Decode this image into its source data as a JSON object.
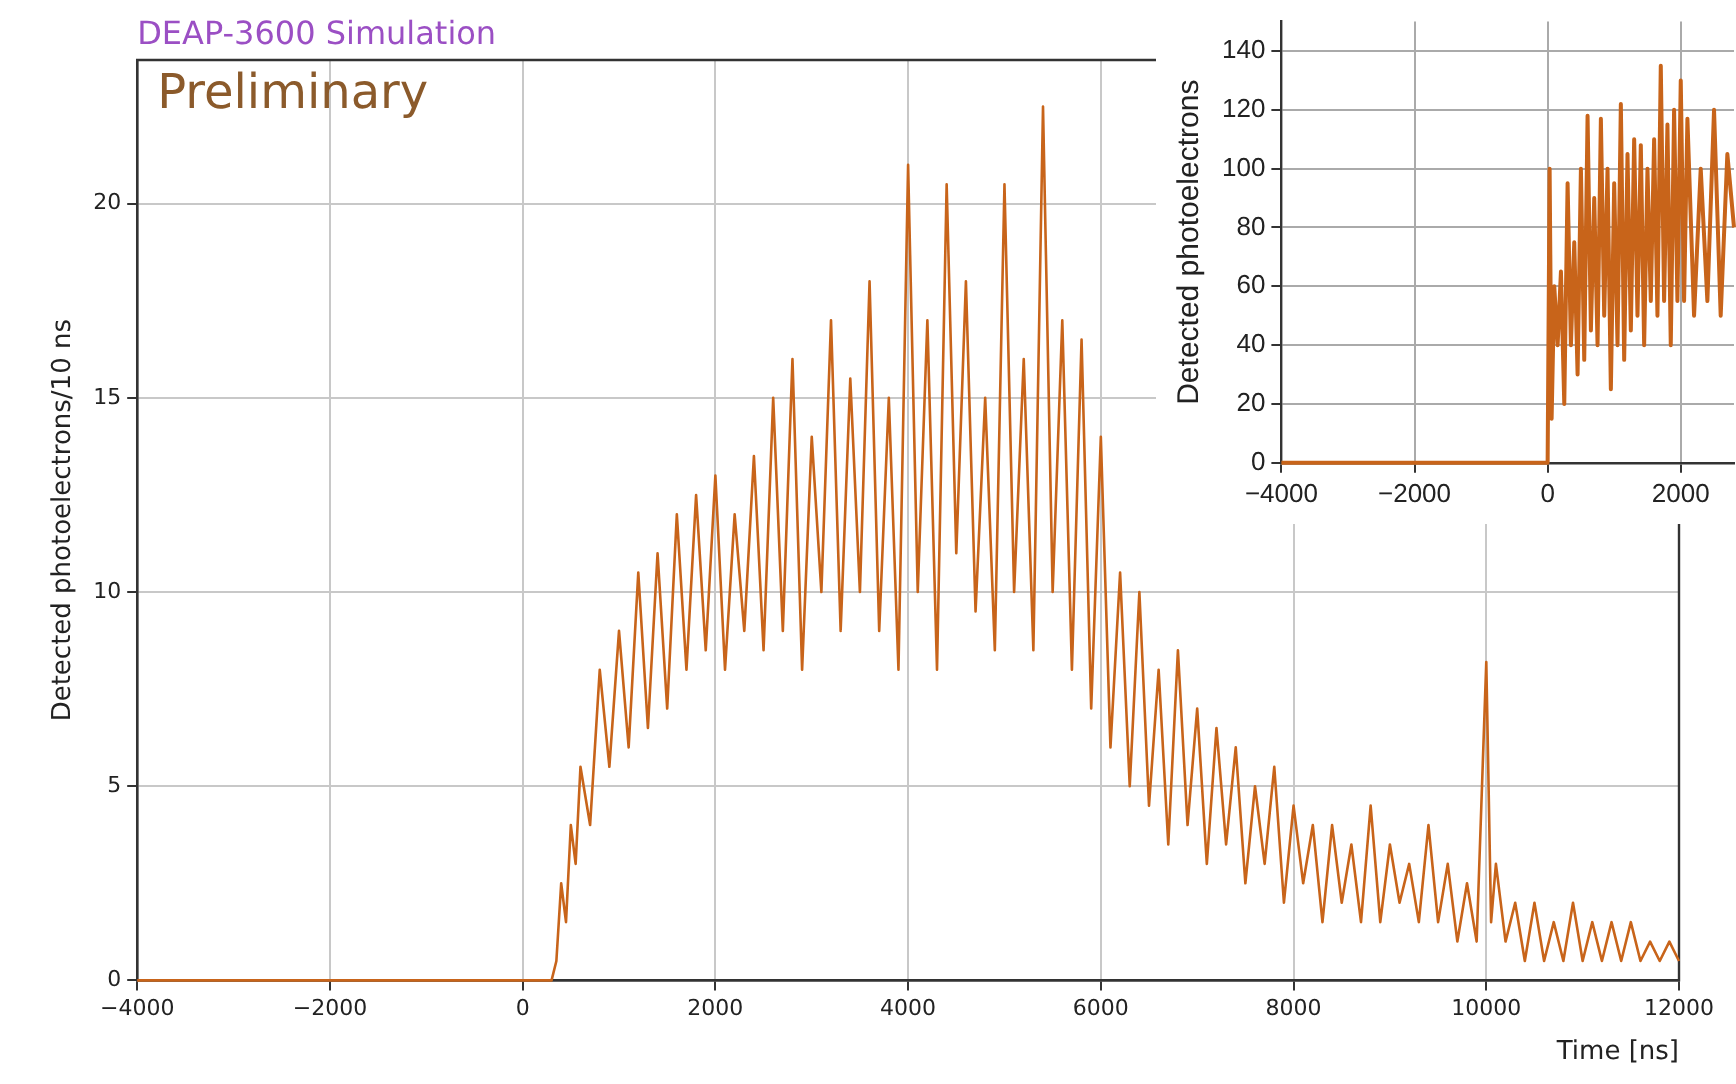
{
  "chart_data": [
    {
      "type": "line",
      "title": "DEAP-3600 Simulation",
      "annotations": [
        "Preliminary"
      ],
      "xlabel": "Time [ns]",
      "ylabel": "Detected photoelectrons/10 ns",
      "xlim": [
        -4000,
        12000
      ],
      "ylim": [
        0,
        23.7
      ],
      "xticks": [
        -4000,
        -2000,
        0,
        2000,
        4000,
        6000,
        8000,
        10000,
        12000
      ],
      "yticks": [
        0,
        5,
        10,
        15,
        20
      ],
      "grid": true,
      "legend": false,
      "series": [
        {
          "color": "#c8641a",
          "x": [
            -4000,
            300,
            350,
            400,
            450,
            500,
            550,
            600,
            700,
            800,
            900,
            1000,
            1100,
            1200,
            1300,
            1400,
            1500,
            1600,
            1700,
            1800,
            1900,
            2000,
            2100,
            2200,
            2300,
            2400,
            2500,
            2600,
            2700,
            2800,
            2900,
            3000,
            3100,
            3200,
            3300,
            3400,
            3500,
            3600,
            3700,
            3800,
            3900,
            4000,
            4100,
            4200,
            4300,
            4400,
            4500,
            4600,
            4700,
            4800,
            4900,
            5000,
            5100,
            5200,
            5300,
            5400,
            5500,
            5600,
            5700,
            5800,
            5900,
            6000,
            6100,
            6200,
            6300,
            6400,
            6500,
            6600,
            6700,
            6800,
            6900,
            7000,
            7100,
            7200,
            7300,
            7400,
            7500,
            7600,
            7700,
            7800,
            7900,
            8000,
            8100,
            8200,
            8300,
            8400,
            8500,
            8600,
            8700,
            8800,
            8900,
            9000,
            9100,
            9200,
            9300,
            9400,
            9500,
            9600,
            9700,
            9800,
            9900,
            10000,
            10050,
            10100,
            10200,
            10300,
            10400,
            10500,
            10600,
            10700,
            10800,
            10900,
            11000,
            11100,
            11200,
            11300,
            11400,
            11500,
            11600,
            11700,
            11800,
            11900,
            12000
          ],
          "values": [
            0,
            0,
            0.5,
            2.5,
            1.5,
            4,
            3,
            5.5,
            4,
            8,
            5.5,
            9,
            6,
            10.5,
            6.5,
            11,
            7,
            12,
            8,
            12.5,
            8.5,
            13,
            8,
            12,
            9,
            13.5,
            8.5,
            15,
            9,
            16,
            8,
            14,
            10,
            17,
            9,
            15.5,
            10,
            18,
            9,
            15,
            8,
            21,
            10,
            17,
            8,
            20.5,
            11,
            18,
            9.5,
            15,
            8.5,
            20.5,
            10,
            16,
            8.5,
            22.5,
            10,
            17,
            8,
            16.5,
            7,
            14,
            6,
            10.5,
            5,
            10,
            4.5,
            8,
            3.5,
            8.5,
            4,
            7,
            3,
            6.5,
            3.5,
            6,
            2.5,
            5,
            3,
            5.5,
            2,
            4.5,
            2.5,
            4,
            1.5,
            4,
            2,
            3.5,
            1.5,
            4.5,
            1.5,
            3.5,
            2,
            3,
            1.5,
            4,
            1.5,
            3,
            1,
            2.5,
            1,
            8.2,
            1.5,
            3,
            1,
            2,
            0.5,
            2,
            0.5,
            1.5,
            0.5,
            2,
            0.5,
            1.5,
            0.5,
            1.5,
            0.5,
            1.5,
            0.5,
            1,
            0.5,
            1,
            0.5
          ]
        }
      ]
    },
    {
      "type": "line",
      "ylabel": "Detected photoelectrons",
      "xlim": [
        -4000,
        2800
      ],
      "ylim": [
        0,
        150
      ],
      "xticks": [
        -4000,
        -2000,
        0,
        2000
      ],
      "yticks": [
        0,
        20,
        40,
        60,
        80,
        100,
        120,
        140
      ],
      "grid": true,
      "legend": false,
      "series": [
        {
          "color": "#c8641a",
          "x": [
            -4000,
            0,
            30,
            60,
            100,
            150,
            200,
            250,
            300,
            350,
            400,
            450,
            500,
            550,
            600,
            650,
            700,
            750,
            800,
            850,
            900,
            950,
            1000,
            1050,
            1100,
            1150,
            1200,
            1250,
            1300,
            1350,
            1400,
            1450,
            1500,
            1550,
            1600,
            1650,
            1700,
            1750,
            1800,
            1850,
            1900,
            1950,
            2000,
            2050,
            2100,
            2200,
            2300,
            2400,
            2500,
            2600,
            2700,
            2800
          ],
          "values": [
            0,
            0,
            100,
            15,
            60,
            40,
            65,
            20,
            95,
            40,
            75,
            30,
            100,
            35,
            118,
            45,
            90,
            40,
            117,
            50,
            100,
            25,
            95,
            40,
            122,
            35,
            105,
            45,
            110,
            50,
            108,
            40,
            100,
            55,
            110,
            50,
            135,
            55,
            115,
            40,
            120,
            55,
            130,
            55,
            117,
            50,
            100,
            55,
            120,
            50,
            105,
            80
          ]
        }
      ]
    }
  ]
}
